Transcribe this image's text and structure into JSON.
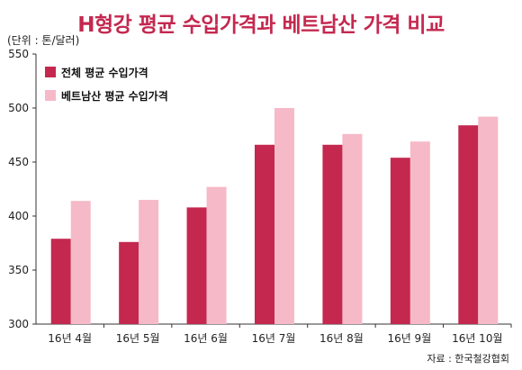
{
  "header": {
    "title": "H형강 평균 수입가격과 베트남산 가격 비교",
    "unit": "(단위 : 톤/달러)",
    "source": "자료 : 한국철강협회"
  },
  "colors": {
    "series1": "#c4284f",
    "series2": "#f6b9c8",
    "title": "#c4284f"
  },
  "chart_data": {
    "type": "bar",
    "categories": [
      "16년 4월",
      "16년 5월",
      "16년 6월",
      "16년 7월",
      "16년 8월",
      "16년 9월",
      "16년 10월"
    ],
    "series": [
      {
        "name": "전체 평균 수입가격",
        "values": [
          379,
          376,
          408,
          466,
          466,
          454,
          484
        ]
      },
      {
        "name": "베트남산 평균 수입가격",
        "values": [
          414,
          415,
          427,
          500,
          476,
          469,
          492
        ]
      }
    ],
    "ylim": [
      300,
      550
    ],
    "yticks": [
      "300",
      "350",
      "400",
      "450",
      "500",
      "550"
    ],
    "legend_position": "top-left",
    "grid": false
  }
}
